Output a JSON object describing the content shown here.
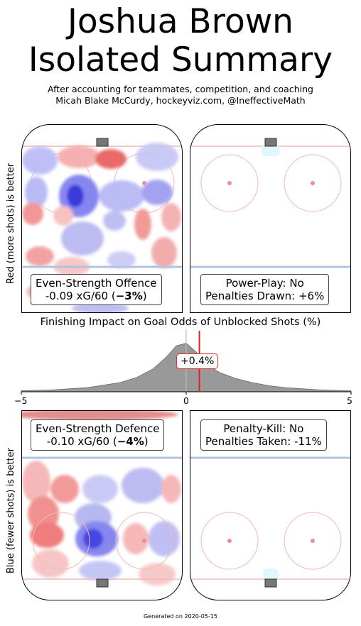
{
  "header": {
    "title_line1": "Joshua Brown",
    "title_line2": "Isolated Summary",
    "subtitle_line1": "After accounting for teammates, competition, and coaching",
    "subtitle_line2": "Micah Blake McCurdy, hockeyviz.com, @IneffectiveMath"
  },
  "axes": {
    "top_ylabel": "Red (more shots) is better",
    "bottom_ylabel": "Blue (fewer shots) is better"
  },
  "panels": {
    "es_offence": {
      "label": "Even-Strength Offence",
      "value_prefix": "-0.09 xG/60 (",
      "value_bold": "−3%",
      "value_suffix": ")"
    },
    "power_play": {
      "label": "Power-Play: No",
      "detail": "Penalties Drawn: +6%"
    },
    "es_defence": {
      "label": "Even-Strength Defence",
      "value_prefix": "-0.10 xG/60 (",
      "value_bold": "−4%",
      "value_suffix": ")"
    },
    "penalty_kill": {
      "label": "Penalty-Kill: No",
      "detail": "Penalties Taken: -11%"
    }
  },
  "chart_data": {
    "type": "area",
    "title": "Finishing Impact on Goal Odds of Unblocked Shots (%)",
    "xlim": [
      -5,
      5
    ],
    "x_ticks": [
      "−5",
      "0",
      "5"
    ],
    "marker_value": 0.4,
    "marker_label": "+0.4%",
    "distribution": {
      "x": [
        -5,
        -4,
        -3,
        -2,
        -1.5,
        -1,
        -0.6,
        -0.3,
        0,
        0.3,
        0.6,
        1,
        1.5,
        2,
        2.5,
        3,
        4,
        5
      ],
      "density": [
        0.02,
        0.04,
        0.08,
        0.18,
        0.28,
        0.45,
        0.68,
        0.9,
        0.95,
        0.78,
        0.55,
        0.38,
        0.26,
        0.18,
        0.12,
        0.08,
        0.04,
        0.02
      ]
    }
  },
  "colors": {
    "red_marker": "#e02020",
    "kde_fill": "#999999",
    "rink_line_red": "#f2b8b8",
    "rink_line_blue": "#b0c4e0",
    "net": "#777777"
  },
  "footer": {
    "generated": "Generated on 2020-05-15"
  }
}
